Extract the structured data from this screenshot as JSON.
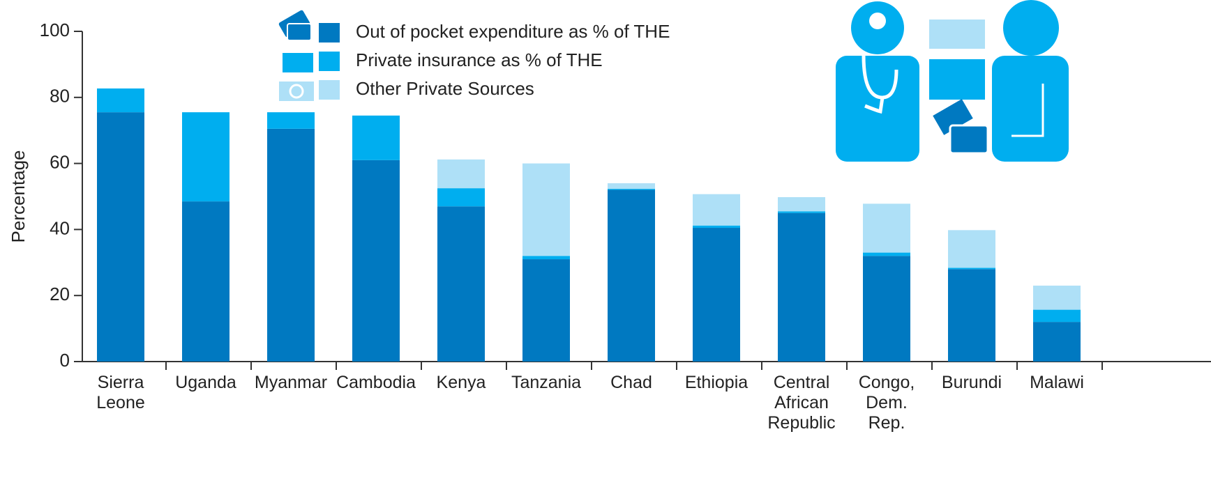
{
  "chart_data": {
    "type": "stacked-bar",
    "y_label": "Percentage",
    "categories": [
      "Sierra\nLeone",
      "Uganda",
      "Myanmar",
      "Cambodia",
      "Kenya",
      "Tanzania",
      "Chad",
      "Ethiopia",
      "Central\nAfrican\nRepublic",
      "Congo,\nDem.\nRep.",
      "Burundi",
      "Malawi"
    ],
    "series": [
      {
        "name": "Out of pocket expenditure as % of THE",
        "color": "#0079c1",
        "values": [
          75.5,
          48.5,
          70.5,
          61,
          47,
          31,
          52,
          40.5,
          45,
          32,
          28,
          12
        ]
      },
      {
        "name": "Private insurance as % of THE",
        "color": "#00aeef",
        "values": [
          7.2,
          27,
          5,
          13.5,
          5.5,
          1,
          0.3,
          0.7,
          0.5,
          1,
          0.4,
          3.7
        ]
      },
      {
        "name": "Other Private Sources",
        "color": "#aee0f7",
        "values": [
          0,
          0,
          0,
          0,
          8.7,
          28,
          1.7,
          9.5,
          4.3,
          14.8,
          11.4,
          7.3
        ]
      }
    ],
    "ylim": [
      0,
      100
    ],
    "yticks": [
      0,
      20,
      40,
      60,
      80,
      100
    ],
    "grid": false,
    "legend": "top"
  }
}
